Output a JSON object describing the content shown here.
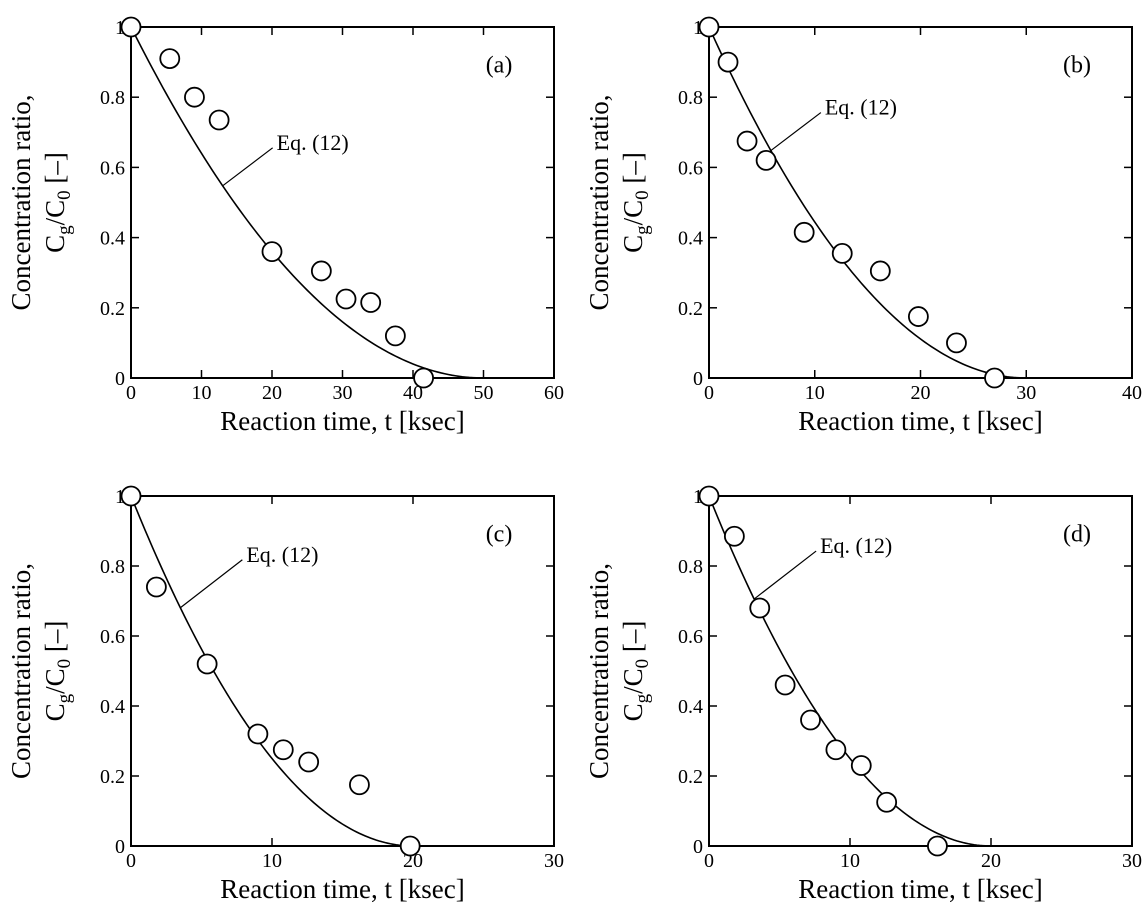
{
  "chart_data": [
    {
      "type": "scatter",
      "panel_label": "(a)",
      "xlabel": "Reaction time, t [ksec]",
      "ylabel_line1": "Concentration ratio,",
      "ylabel_line2": {
        "c": "C",
        "c_sub": "g",
        "slash": "/C",
        "zero_sub": "0",
        "unit": " [–]"
      },
      "xlim": [
        0,
        60
      ],
      "ylim": [
        0,
        1
      ],
      "xticks": [
        0,
        10,
        20,
        30,
        40,
        50,
        60
      ],
      "yticks": [
        0,
        0.2,
        0.4,
        0.6,
        0.8,
        1
      ],
      "ytick_labels": [
        "0",
        "0.2",
        "0.4",
        "0.6",
        "0.8",
        "1"
      ],
      "curve_label": "Eq. (12)",
      "curve": {
        "end": 50,
        "power": 2
      },
      "series": [
        {
          "x": [
            0,
            5.5,
            9,
            12.5,
            20,
            27,
            30.5,
            34,
            37.5,
            41.5
          ],
          "y": [
            1,
            0.91,
            0.8,
            0.735,
            0.36,
            0.305,
            0.225,
            0.215,
            0.12,
            0.0
          ]
        }
      ]
    },
    {
      "type": "scatter",
      "panel_label": "(b)",
      "xlabel": "Reaction time, t [ksec]",
      "ylabel_line1": "Concentration ratio,",
      "ylabel_line2": {
        "c": "C",
        "c_sub": "g",
        "slash": "/C",
        "zero_sub": "0",
        "unit": " [–]"
      },
      "xlim": [
        0,
        40
      ],
      "ylim": [
        0,
        1
      ],
      "xticks": [
        0,
        10,
        20,
        30,
        40
      ],
      "yticks": [
        0,
        0.2,
        0.4,
        0.6,
        0.8,
        1
      ],
      "ytick_labels": [
        "0",
        "0.2",
        "0.4",
        "0.6",
        "0.8",
        "1"
      ],
      "curve_label": "Eq. (12)",
      "curve": {
        "end": 30,
        "power": 2
      },
      "series": [
        {
          "x": [
            0,
            1.8,
            3.6,
            5.4,
            9,
            12.6,
            16.2,
            19.8,
            23.4,
            27
          ],
          "y": [
            1,
            0.9,
            0.675,
            0.62,
            0.415,
            0.355,
            0.305,
            0.175,
            0.1,
            0.0
          ]
        }
      ]
    },
    {
      "type": "scatter",
      "panel_label": "(c)",
      "xlabel": "Reaction time, t [ksec]",
      "ylabel_line1": "Concentration ratio,",
      "ylabel_line2": {
        "c": "C",
        "c_sub": "g",
        "slash": "/C",
        "zero_sub": "0",
        "unit": " [–]"
      },
      "xlim": [
        0,
        30
      ],
      "ylim": [
        0,
        1
      ],
      "xticks": [
        0,
        10,
        20,
        30
      ],
      "yticks": [
        0,
        0.2,
        0.4,
        0.6,
        0.8,
        1
      ],
      "ytick_labels": [
        "0",
        "0.2",
        "0.4",
        "0.6",
        "0.8",
        "1"
      ],
      "curve_label": "Eq. (12)",
      "curve": {
        "end": 20,
        "power": 2
      },
      "series": [
        {
          "x": [
            0,
            1.8,
            5.4,
            9,
            10.8,
            12.6,
            16.2,
            19.8
          ],
          "y": [
            1,
            0.74,
            0.52,
            0.32,
            0.275,
            0.24,
            0.175,
            0.0
          ]
        }
      ]
    },
    {
      "type": "scatter",
      "panel_label": "(d)",
      "xlabel": "Reaction time, t [ksec]",
      "ylabel_line1": "Concentration ratio,",
      "ylabel_line2": {
        "c": "C",
        "c_sub": "g",
        "slash": "/C",
        "zero_sub": "0",
        "unit": " [–]"
      },
      "xlim": [
        0,
        30
      ],
      "ylim": [
        0,
        1
      ],
      "xticks": [
        0,
        10,
        20,
        30
      ],
      "yticks": [
        0,
        0.2,
        0.4,
        0.6,
        0.8,
        1
      ],
      "ytick_labels": [
        "0",
        "0.2",
        "0.4",
        "0.6",
        "0.8",
        "1"
      ],
      "curve_label": "Eq. (12)",
      "curve": {
        "end": 20,
        "power": 2
      },
      "series": [
        {
          "x": [
            0,
            1.8,
            3.6,
            5.4,
            7.2,
            9,
            10.8,
            12.6,
            16.2
          ],
          "y": [
            1,
            0.885,
            0.68,
            0.46,
            0.36,
            0.275,
            0.23,
            0.125,
            0.0
          ]
        }
      ]
    }
  ]
}
